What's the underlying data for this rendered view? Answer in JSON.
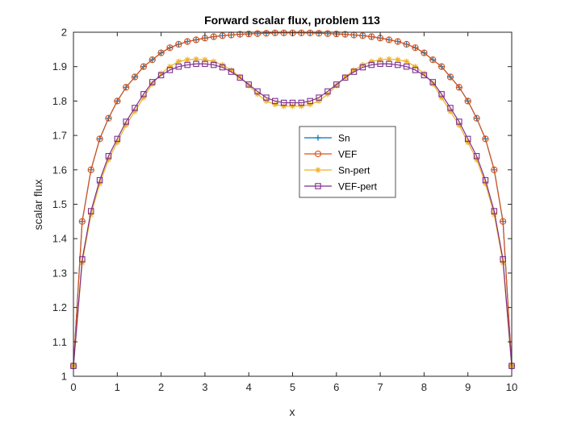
{
  "chart_data": {
    "type": "line",
    "title": "Forward scalar flux, problem 113",
    "xlabel": "x",
    "ylabel": "scalar flux",
    "xlim": [
      0,
      10
    ],
    "ylim": [
      1,
      2
    ],
    "xticks": [
      0,
      1,
      2,
      3,
      4,
      5,
      6,
      7,
      8,
      9,
      10
    ],
    "yticks": [
      1,
      1.1,
      1.2,
      1.3,
      1.4,
      1.5,
      1.6,
      1.7,
      1.8,
      1.9,
      2
    ],
    "xtick_labels": [
      "0",
      "1",
      "2",
      "3",
      "4",
      "5",
      "6",
      "7",
      "8",
      "9",
      "10"
    ],
    "ytick_labels": [
      "1",
      "1.1",
      "1.2",
      "1.3",
      "1.4",
      "1.5",
      "1.6",
      "1.7",
      "1.8",
      "1.9",
      "2"
    ],
    "grid": false,
    "legend_placement": "center-right",
    "x": [
      0.0,
      0.2,
      0.4,
      0.6,
      0.8,
      1.0,
      1.2,
      1.4,
      1.6,
      1.8,
      2.0,
      2.2,
      2.4,
      2.6,
      2.8,
      3.0,
      3.2,
      3.4,
      3.6,
      3.8,
      4.0,
      4.2,
      4.4,
      4.6,
      4.8,
      5.0,
      5.2,
      5.4,
      5.6,
      5.8,
      6.0,
      6.2,
      6.4,
      6.6,
      6.8,
      7.0,
      7.2,
      7.4,
      7.6,
      7.8,
      8.0,
      8.2,
      8.4,
      8.6,
      8.8,
      9.0,
      9.2,
      9.4,
      9.6,
      9.8,
      10.0
    ],
    "series": [
      {
        "name": "Sn",
        "color": "#0072BD",
        "marker": "plus",
        "values": [
          1.03,
          1.45,
          1.6,
          1.69,
          1.75,
          1.8,
          1.84,
          1.87,
          1.9,
          1.92,
          1.94,
          1.955,
          1.965,
          1.973,
          1.978,
          1.983,
          1.987,
          1.99,
          1.992,
          1.994,
          1.995,
          1.996,
          1.997,
          1.998,
          1.998,
          1.998,
          1.998,
          1.998,
          1.997,
          1.996,
          1.995,
          1.994,
          1.992,
          1.99,
          1.987,
          1.983,
          1.978,
          1.973,
          1.965,
          1.955,
          1.94,
          1.92,
          1.9,
          1.87,
          1.84,
          1.8,
          1.75,
          1.69,
          1.6,
          1.45,
          1.03
        ]
      },
      {
        "name": "VEF",
        "color": "#D95319",
        "marker": "circle",
        "values": [
          1.03,
          1.45,
          1.6,
          1.69,
          1.75,
          1.8,
          1.84,
          1.87,
          1.9,
          1.92,
          1.94,
          1.955,
          1.965,
          1.973,
          1.978,
          1.983,
          1.987,
          1.99,
          1.992,
          1.994,
          1.995,
          1.996,
          1.997,
          1.998,
          1.998,
          1.998,
          1.998,
          1.998,
          1.997,
          1.996,
          1.995,
          1.994,
          1.992,
          1.99,
          1.987,
          1.983,
          1.978,
          1.973,
          1.965,
          1.955,
          1.94,
          1.92,
          1.9,
          1.87,
          1.84,
          1.8,
          1.75,
          1.69,
          1.6,
          1.45,
          1.03
        ]
      },
      {
        "name": "Sn-pert",
        "color": "#EDB120",
        "marker": "asterisk",
        "values": [
          1.03,
          1.33,
          1.47,
          1.56,
          1.63,
          1.68,
          1.73,
          1.77,
          1.81,
          1.85,
          1.88,
          1.9,
          1.915,
          1.92,
          1.922,
          1.92,
          1.915,
          1.905,
          1.89,
          1.87,
          1.845,
          1.82,
          1.8,
          1.79,
          1.785,
          1.785,
          1.785,
          1.79,
          1.8,
          1.82,
          1.845,
          1.87,
          1.89,
          1.905,
          1.915,
          1.92,
          1.922,
          1.92,
          1.915,
          1.9,
          1.88,
          1.85,
          1.81,
          1.77,
          1.73,
          1.68,
          1.63,
          1.56,
          1.47,
          1.33,
          1.03
        ]
      },
      {
        "name": "VEF-pert",
        "color": "#7E2F8E",
        "marker": "square",
        "values": [
          1.03,
          1.34,
          1.48,
          1.57,
          1.64,
          1.69,
          1.74,
          1.78,
          1.82,
          1.855,
          1.875,
          1.89,
          1.9,
          1.905,
          1.908,
          1.908,
          1.905,
          1.898,
          1.885,
          1.868,
          1.848,
          1.828,
          1.81,
          1.8,
          1.795,
          1.795,
          1.795,
          1.8,
          1.81,
          1.828,
          1.848,
          1.868,
          1.885,
          1.898,
          1.905,
          1.908,
          1.908,
          1.905,
          1.9,
          1.89,
          1.875,
          1.855,
          1.82,
          1.78,
          1.74,
          1.69,
          1.64,
          1.57,
          1.48,
          1.34,
          1.03
        ]
      }
    ]
  }
}
